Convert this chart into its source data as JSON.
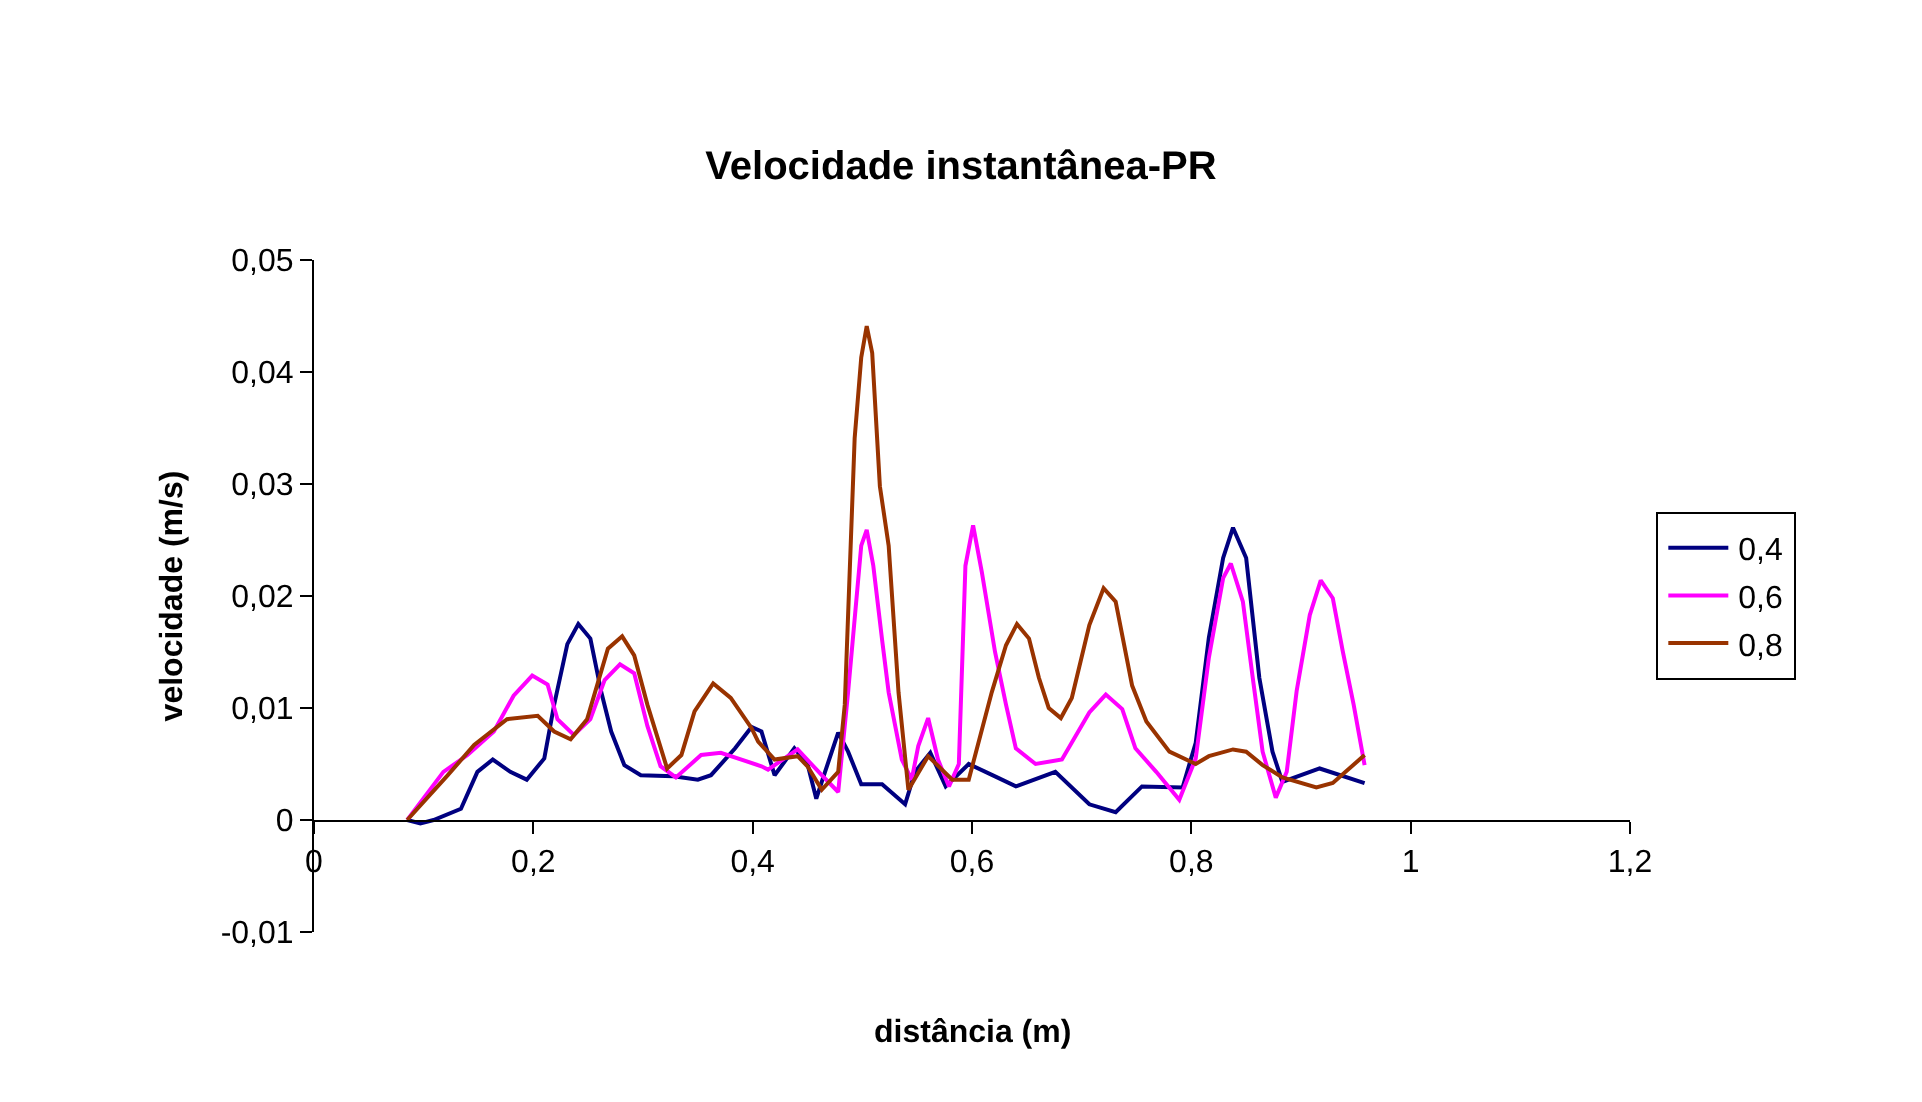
{
  "chart_data": {
    "type": "line",
    "title": "Velocidade instantânea-PR",
    "xlabel": "distância (m)",
    "ylabel": "velocidade (m/s)",
    "xlim": [
      0,
      1.2
    ],
    "xticks": [
      0,
      {
        "value": 0.2,
        "label": "0,2"
      },
      {
        "value": 0.4,
        "label": "0,4"
      },
      {
        "value": 0.6,
        "label": "0,6"
      },
      {
        "value": 0.8,
        "label": "0,8"
      },
      1,
      {
        "value": 1.2,
        "label": "1,2"
      }
    ],
    "ylim": [
      -0.01,
      0.05
    ],
    "yticks": [
      {
        "value": -0.01,
        "label": "-0,01"
      },
      0,
      {
        "value": 0.01,
        "label": "0,01"
      },
      {
        "value": 0.02,
        "label": "0,02"
      },
      {
        "value": 0.03,
        "label": "0,03"
      },
      {
        "value": 0.04,
        "label": "0,04"
      },
      {
        "value": 0.05,
        "label": "0,05"
      }
    ],
    "grid": false,
    "legend": "right",
    "marker": "none",
    "line_style": "solid",
    "series": [
      {
        "name": "0,4",
        "color": "#000080",
        "x": [
          0.085,
          0.097,
          0.109,
          0.134,
          0.149,
          0.163,
          0.179,
          0.194,
          0.21,
          0.219,
          0.231,
          0.241,
          0.252,
          0.262,
          0.271,
          0.283,
          0.298,
          0.328,
          0.35,
          0.362,
          0.384,
          0.399,
          0.408,
          0.42,
          0.438,
          0.45,
          0.458,
          0.466,
          0.478,
          0.487,
          0.499,
          0.518,
          0.539,
          0.548,
          0.562,
          0.576,
          0.597,
          0.621,
          0.64,
          0.676,
          0.707,
          0.731,
          0.755,
          0.792,
          0.804,
          0.816,
          0.829,
          0.838,
          0.85,
          0.862,
          0.874,
          0.883,
          0.917,
          0.958
        ],
        "values": [
          0,
          -0.0003,
          0,
          0.001,
          0.0043,
          0.0054,
          0.0043,
          0.0036,
          0.0055,
          0.0103,
          0.0157,
          0.0175,
          0.0162,
          0.0114,
          0.0079,
          0.0049,
          0.004,
          0.0039,
          0.0036,
          0.004,
          0.0064,
          0.0083,
          0.0079,
          0.004,
          0.0064,
          0.005,
          0.0019,
          0.0043,
          0.0078,
          0.0061,
          0.0032,
          0.0032,
          0.0014,
          0.0043,
          0.006,
          0.003,
          0.005,
          0.0039,
          0.003,
          0.0043,
          0.0014,
          0.0007,
          0.003,
          0.0029,
          0.0069,
          0.0163,
          0.0234,
          0.0261,
          0.0234,
          0.0127,
          0.0061,
          0.0034,
          0.0046,
          0.0033
        ]
      },
      {
        "name": "0,6",
        "color": "#ff00ff",
        "x": [
          0.085,
          0.118,
          0.14,
          0.164,
          0.182,
          0.199,
          0.213,
          0.222,
          0.237,
          0.252,
          0.265,
          0.279,
          0.292,
          0.304,
          0.316,
          0.33,
          0.353,
          0.371,
          0.408,
          0.414,
          0.441,
          0.463,
          0.478,
          0.487,
          0.499,
          0.504,
          0.51,
          0.518,
          0.524,
          0.536,
          0.545,
          0.551,
          0.56,
          0.569,
          0.579,
          0.588,
          0.594,
          0.601,
          0.609,
          0.621,
          0.631,
          0.64,
          0.658,
          0.682,
          0.707,
          0.722,
          0.737,
          0.749,
          0.768,
          0.789,
          0.804,
          0.816,
          0.829,
          0.836,
          0.847,
          0.856,
          0.865,
          0.877,
          0.887,
          0.896,
          0.908,
          0.918,
          0.929,
          0.938,
          0.948,
          0.958
        ],
        "values": [
          0,
          0.0043,
          0.0058,
          0.0079,
          0.0111,
          0.0129,
          0.0121,
          0.009,
          0.0076,
          0.009,
          0.0125,
          0.0139,
          0.0131,
          0.0084,
          0.0048,
          0.0038,
          0.0058,
          0.006,
          0.0048,
          0.0045,
          0.0063,
          0.004,
          0.0025,
          0.0114,
          0.0245,
          0.0259,
          0.0227,
          0.0161,
          0.0114,
          0.0054,
          0.0036,
          0.0066,
          0.0091,
          0.0054,
          0.003,
          0.005,
          0.0227,
          0.0263,
          0.0221,
          0.015,
          0.0103,
          0.0064,
          0.005,
          0.0054,
          0.0096,
          0.0112,
          0.0099,
          0.0064,
          0.0043,
          0.0018,
          0.0055,
          0.0145,
          0.0216,
          0.0229,
          0.0195,
          0.0127,
          0.0061,
          0.002,
          0.0043,
          0.0115,
          0.0183,
          0.0214,
          0.0198,
          0.0151,
          0.0103,
          0.0049
        ]
      },
      {
        "name": "0,8",
        "color": "#993300",
        "x": [
          0.085,
          0.122,
          0.146,
          0.176,
          0.204,
          0.219,
          0.234,
          0.249,
          0.268,
          0.281,
          0.292,
          0.304,
          0.322,
          0.335,
          0.347,
          0.364,
          0.38,
          0.399,
          0.405,
          0.42,
          0.441,
          0.45,
          0.463,
          0.478,
          0.484,
          0.493,
          0.499,
          0.504,
          0.509,
          0.516,
          0.524,
          0.533,
          0.542,
          0.56,
          0.582,
          0.597,
          0.618,
          0.631,
          0.641,
          0.652,
          0.661,
          0.67,
          0.681,
          0.691,
          0.707,
          0.72,
          0.731,
          0.746,
          0.759,
          0.78,
          0.804,
          0.816,
          0.838,
          0.85,
          0.865,
          0.883,
          0.914,
          0.929,
          0.958
        ],
        "values": [
          0,
          0.004,
          0.0067,
          0.009,
          0.0093,
          0.0079,
          0.0072,
          0.009,
          0.0153,
          0.0164,
          0.0147,
          0.0103,
          0.0046,
          0.0058,
          0.0097,
          0.0122,
          0.0109,
          0.0082,
          0.007,
          0.0054,
          0.0057,
          0.0048,
          0.0027,
          0.0043,
          0.0103,
          0.0341,
          0.0413,
          0.0441,
          0.0417,
          0.0298,
          0.0245,
          0.0114,
          0.0027,
          0.0057,
          0.0036,
          0.0036,
          0.0114,
          0.0156,
          0.0175,
          0.0162,
          0.0127,
          0.01,
          0.0091,
          0.0109,
          0.0174,
          0.0207,
          0.0195,
          0.012,
          0.0088,
          0.0061,
          0.005,
          0.0057,
          0.0063,
          0.0061,
          0.0049,
          0.0038,
          0.0029,
          0.0033,
          0.0058
        ]
      }
    ]
  }
}
